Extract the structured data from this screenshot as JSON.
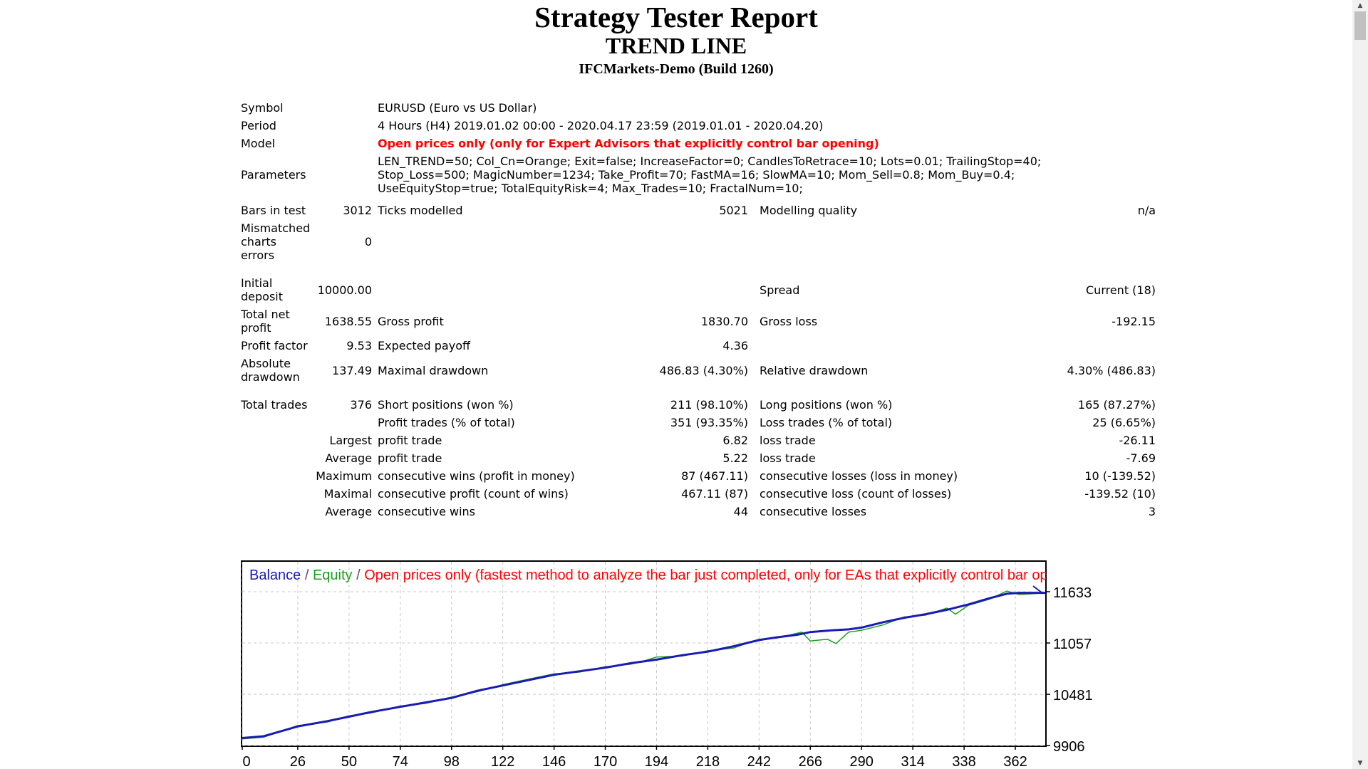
{
  "header": {
    "title": "Strategy Tester Report",
    "ea_name": "TREND LINE",
    "server": "IFCMarkets-Demo (Build 1260)"
  },
  "report": {
    "symbol_label": "Symbol",
    "symbol_value": "EURUSD (Euro vs US Dollar)",
    "period_label": "Period",
    "period_value": "4 Hours (H4) 2019.01.02 00:00 - 2020.04.17 23:59 (2019.01.01 - 2020.04.20)",
    "model_label": "Model",
    "model_value": "Open prices only (only for Expert Advisors that explicitly control bar opening)",
    "parameters_label": "Parameters",
    "parameters_value": "LEN_TREND=50; Col_Cn=Orange; Exit=false; IncreaseFactor=0; CandlesToRetrace=10; Lots=0.01; TrailingStop=40; Stop_Loss=500; MagicNumber=1234; Take_Profit=70; FastMA=16; SlowMA=10; Mom_Sell=0.8; Mom_Buy=0.4; UseEquityStop=true; TotalEquityRisk=4; Max_Trades=10; FractalNum=10;",
    "bars_label": "Bars in test",
    "bars_value": "3012",
    "ticks_label": "Ticks modelled",
    "ticks_value": "5021",
    "quality_label": "Modelling quality",
    "quality_value": "n/a",
    "mismatch_label": "Mismatched charts errors",
    "mismatch_value": "0",
    "deposit_label": "Initial deposit",
    "deposit_value": "10000.00",
    "spread_label": "Spread",
    "spread_value": "Current (18)",
    "net_label": "Total net profit",
    "net_value": "1638.55",
    "gross_profit_label": "Gross profit",
    "gross_profit_value": "1830.70",
    "gross_loss_label": "Gross loss",
    "gross_loss_value": "-192.15",
    "pf_label": "Profit factor",
    "pf_value": "9.53",
    "payoff_label": "Expected payoff",
    "payoff_value": "4.36",
    "abs_dd_label": "Absolute drawdown",
    "abs_dd_value": "137.49",
    "max_dd_label": "Maximal drawdown",
    "max_dd_value": "486.83 (4.30%)",
    "rel_dd_label": "Relative drawdown",
    "rel_dd_value": "4.30% (486.83)",
    "trades_label": "Total trades",
    "trades_value": "376",
    "short_label": "Short positions (won %)",
    "short_value": "211 (98.10%)",
    "long_label": "Long positions (won %)",
    "long_value": "165 (87.27%)",
    "profit_trades_label": "Profit trades (% of total)",
    "profit_trades_value": "351 (93.35%)",
    "loss_trades_label": "Loss trades (% of total)",
    "loss_trades_value": "25 (6.65%)",
    "largest_label": "Largest",
    "largest_profit_label": "profit trade",
    "largest_profit_value": "6.82",
    "largest_loss_label": "loss trade",
    "largest_loss_value": "-26.11",
    "average_label": "Average",
    "average_profit_label": "profit trade",
    "average_profit_value": "5.22",
    "average_loss_label": "loss trade",
    "average_loss_value": "-7.69",
    "maximum_label": "Maximum",
    "cons_wins_money_label": "consecutive wins (profit in money)",
    "cons_wins_money_value": "87 (467.11)",
    "cons_losses_money_label": "consecutive losses (loss in money)",
    "cons_losses_money_value": "10 (-139.52)",
    "maximal_label": "Maximal",
    "cons_profit_label": "consecutive profit (count of wins)",
    "cons_profit_value": "467.11 (87)",
    "cons_loss_label": "consecutive loss (count of losses)",
    "cons_loss_value": "-139.52 (10)",
    "average2_label": "Average",
    "avg_cons_wins_label": "consecutive wins",
    "avg_cons_wins_value": "44",
    "avg_cons_losses_label": "consecutive losses",
    "avg_cons_losses_value": "3"
  },
  "chart_caption": {
    "balance": "Balance",
    "sep1": " / ",
    "equity": "Equity",
    "sep2": " / ",
    "model": "Open prices only (fastest method to analyze the bar just completed, only for EAs that explicitly control bar opening)"
  },
  "colors": {
    "balance": "#1a1ab4",
    "equity": "#1e9f1e",
    "model_text": "#ff0000",
    "grid": "#c8c8c8"
  },
  "chart_data": {
    "type": "line",
    "title": "",
    "xlabel": "",
    "ylabel": "",
    "xlim": [
      0,
      376
    ],
    "ylim": [
      9906,
      11633
    ],
    "x_ticks": [
      0,
      26,
      50,
      74,
      98,
      122,
      146,
      170,
      194,
      218,
      242,
      266,
      290,
      314,
      338,
      362
    ],
    "y_ticks": [
      11633,
      11057,
      10481,
      9906
    ],
    "series": [
      {
        "name": "Balance",
        "x": [
          0,
          10,
          26,
          40,
          50,
          60,
          74,
          86,
          98,
          110,
          122,
          134,
          146,
          158,
          170,
          182,
          194,
          206,
          218,
          230,
          242,
          250,
          260,
          266,
          276,
          284,
          290,
          300,
          310,
          320,
          330,
          340,
          350,
          358,
          364,
          370,
          376
        ],
        "y": [
          9990,
          10010,
          10120,
          10180,
          10230,
          10280,
          10340,
          10390,
          10440,
          10520,
          10580,
          10640,
          10700,
          10740,
          10780,
          10830,
          10870,
          10920,
          10960,
          11020,
          11090,
          11120,
          11150,
          11180,
          11200,
          11210,
          11230,
          11290,
          11340,
          11380,
          11430,
          11490,
          11560,
          11610,
          11620,
          11620,
          11620
        ]
      },
      {
        "name": "Equity",
        "x": [
          0,
          10,
          26,
          40,
          50,
          60,
          74,
          86,
          98,
          110,
          122,
          134,
          146,
          158,
          170,
          182,
          186,
          194,
          206,
          218,
          230,
          242,
          250,
          262,
          266,
          274,
          278,
          284,
          290,
          300,
          310,
          320,
          330,
          334,
          340,
          350,
          358,
          364,
          370,
          376
        ],
        "y": [
          9980,
          10000,
          10130,
          10170,
          10240,
          10270,
          10350,
          10380,
          10450,
          10510,
          10590,
          10650,
          10710,
          10730,
          10790,
          10820,
          10840,
          10900,
          10910,
          10970,
          11000,
          11100,
          11110,
          11180,
          11080,
          11100,
          11050,
          11180,
          11200,
          11260,
          11350,
          11370,
          11450,
          11380,
          11480,
          11550,
          11640,
          11600,
          11610,
          11620
        ]
      }
    ],
    "grid": true
  }
}
